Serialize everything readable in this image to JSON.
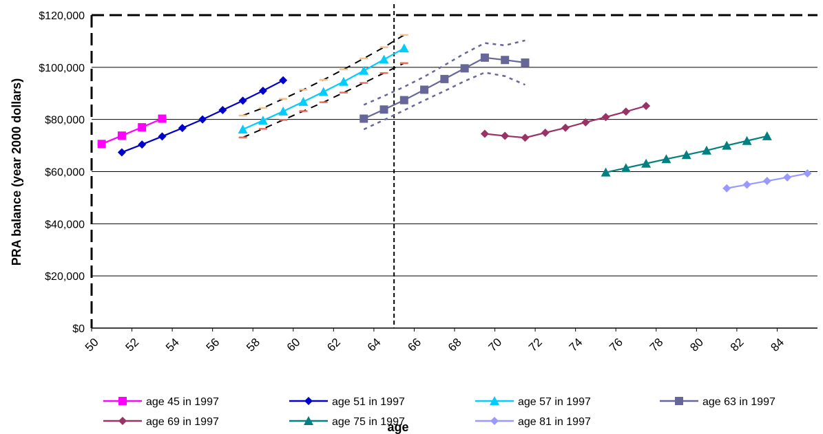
{
  "chart_data": {
    "type": "line",
    "xlabel": "age",
    "ylabel": "PRA balance (year 2000 dollars)",
    "xlim": [
      50,
      86
    ],
    "ylim": [
      0,
      120000
    ],
    "x_ticks": [
      "50",
      "52",
      "54",
      "56",
      "58",
      "60",
      "62",
      "64",
      "66",
      "68",
      "70",
      "72",
      "74",
      "76",
      "78",
      "80",
      "82",
      "84"
    ],
    "y_ticks": [
      "$0",
      "$20,000",
      "$40,000",
      "$60,000",
      "$80,000",
      "$100,000",
      "$120,000"
    ],
    "y_tick_values": [
      0,
      20000,
      40000,
      60000,
      80000,
      100000,
      120000
    ],
    "grid": "horizontal",
    "legend_position": "bottom",
    "reference_line_x": 65,
    "series": [
      {
        "name": "age 45 in 1997",
        "color": "#ff00ff",
        "marker": "square",
        "x": [
          50.5,
          51.5,
          52.5,
          53.5
        ],
        "y": [
          70600,
          73800,
          77000,
          80300
        ]
      },
      {
        "name": "age 51 in 1997",
        "color": "#0000cc",
        "marker": "diamond",
        "x": [
          51.5,
          52.5,
          53.5,
          54.5,
          55.5,
          56.5,
          57.5,
          58.5,
          59.5
        ],
        "y": [
          67400,
          70400,
          73500,
          76700,
          80000,
          83600,
          87200,
          91000,
          95000
        ]
      },
      {
        "name": "age 57 in 1997",
        "color": "#00ccff",
        "marker": "triangle",
        "x": [
          57.5,
          58.5,
          59.5,
          60.5,
          61.5,
          62.5,
          63.5,
          64.5,
          65.5
        ],
        "y": [
          76200,
          79600,
          83100,
          86800,
          90600,
          94500,
          98700,
          103000,
          107300
        ],
        "upper": [
          81500,
          84400,
          87900,
          91400,
          95200,
          99200,
          103400,
          107700,
          112400
        ],
        "lower": [
          73100,
          76400,
          79800,
          83200,
          86600,
          90300,
          94000,
          97800,
          101600
        ]
      },
      {
        "name": "age 63 in 1997",
        "color": "#666699",
        "marker": "square",
        "x": [
          63.5,
          64.5,
          65.5,
          66.5,
          67.5,
          68.5,
          69.5,
          70.5,
          71.5
        ],
        "y": [
          80300,
          83800,
          87400,
          91400,
          95500,
          99600,
          103700,
          102800,
          101800
        ],
        "upper": [
          85600,
          89000,
          92500,
          96400,
          100800,
          105300,
          109300,
          108400,
          110300
        ],
        "lower": [
          76200,
          79800,
          83500,
          87300,
          90900,
          94700,
          98000,
          96600,
          93300
        ]
      },
      {
        "name": "age 69 in 1997",
        "color": "#993366",
        "marker": "diamond",
        "x": [
          69.5,
          70.5,
          71.5,
          72.5,
          73.5,
          74.5,
          75.5,
          76.5,
          77.5
        ],
        "y": [
          74500,
          73700,
          73000,
          74900,
          76800,
          78900,
          80900,
          83000,
          85200
        ]
      },
      {
        "name": "age 75 in 1997",
        "color": "#008080",
        "marker": "triangle",
        "x": [
          75.5,
          76.5,
          77.5,
          78.5,
          79.5,
          80.5,
          81.5,
          82.5,
          83.5
        ],
        "y": [
          59700,
          61400,
          63100,
          64800,
          66400,
          68100,
          70000,
          71800,
          73600
        ]
      },
      {
        "name": "age 81 in 1997",
        "color": "#9999ff",
        "marker": "diamond",
        "x": [
          81.5,
          82.5,
          83.5,
          84.5,
          85.5
        ],
        "y": [
          53600,
          55000,
          56400,
          57800,
          59300
        ]
      }
    ]
  }
}
